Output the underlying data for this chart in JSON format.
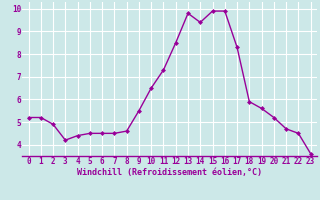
{
  "x": [
    0,
    1,
    2,
    3,
    4,
    5,
    6,
    7,
    8,
    9,
    10,
    11,
    12,
    13,
    14,
    15,
    16,
    17,
    18,
    19,
    20,
    21,
    22,
    23
  ],
  "y": [
    5.2,
    5.2,
    4.9,
    4.2,
    4.4,
    4.5,
    4.5,
    4.5,
    4.6,
    5.5,
    6.5,
    7.3,
    8.5,
    9.8,
    9.4,
    9.9,
    9.9,
    8.3,
    5.9,
    5.6,
    5.2,
    4.7,
    4.5,
    3.6
  ],
  "line_color": "#990099",
  "marker": "D",
  "marker_size": 2.0,
  "bg_color": "#cce8e8",
  "grid_color": "#ffffff",
  "xlabel": "Windchill (Refroidissement éolien,°C)",
  "xlabel_color": "#990099",
  "tick_color": "#990099",
  "xlim": [
    -0.5,
    23.5
  ],
  "ylim": [
    3.5,
    10.3
  ],
  "yticks": [
    4,
    5,
    6,
    7,
    8,
    9,
    10
  ],
  "xticks": [
    0,
    1,
    2,
    3,
    4,
    5,
    6,
    7,
    8,
    9,
    10,
    11,
    12,
    13,
    14,
    15,
    16,
    17,
    18,
    19,
    20,
    21,
    22,
    23
  ],
  "tick_fontsize": 5.5,
  "xlabel_fontsize": 6.0,
  "ylabel_fontsize": 6.0,
  "linewidth": 1.0
}
